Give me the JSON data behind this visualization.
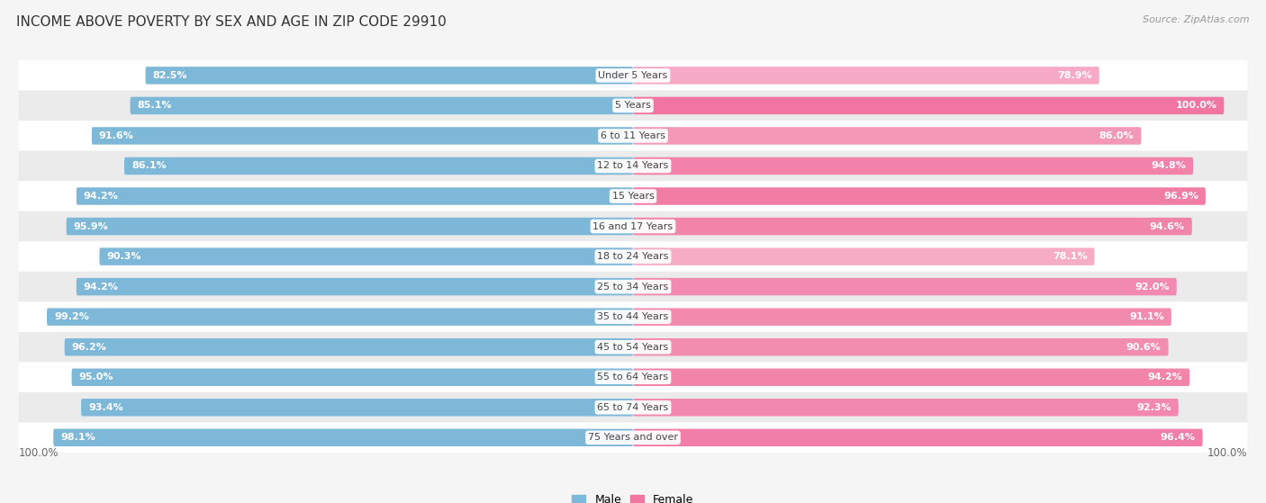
{
  "title": "INCOME ABOVE POVERTY BY SEX AND AGE IN ZIP CODE 29910",
  "source": "Source: ZipAtlas.com",
  "categories": [
    "Under 5 Years",
    "5 Years",
    "6 to 11 Years",
    "12 to 14 Years",
    "15 Years",
    "16 and 17 Years",
    "18 to 24 Years",
    "25 to 34 Years",
    "35 to 44 Years",
    "45 to 54 Years",
    "55 to 64 Years",
    "65 to 74 Years",
    "75 Years and over"
  ],
  "male": [
    82.5,
    85.1,
    91.6,
    86.1,
    94.2,
    95.9,
    90.3,
    94.2,
    99.2,
    96.2,
    95.0,
    93.4,
    98.1
  ],
  "female": [
    78.9,
    100.0,
    86.0,
    94.8,
    96.9,
    94.6,
    78.1,
    92.0,
    91.1,
    90.6,
    94.2,
    92.3,
    96.4
  ],
  "male_color": "#7eb8d9",
  "female_color_strong": "#f075a0",
  "female_color_weak": "#f9c0d4",
  "background_color": "#f5f5f5",
  "row_color_odd": "#ffffff",
  "row_color_even": "#ebebeb",
  "title_fontsize": 11,
  "source_fontsize": 8,
  "label_fontsize": 8,
  "category_fontsize": 8,
  "legend_fontsize": 9,
  "bar_height": 0.55
}
